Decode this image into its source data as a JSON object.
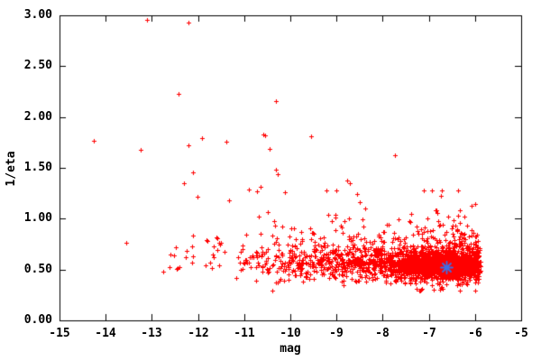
{
  "figure": {
    "background": "#ffffff",
    "frame_color": "#000000",
    "text_color": "#000000"
  },
  "chart_data": {
    "type": "scatter",
    "title": "",
    "xlabel": "mag",
    "ylabel": "1/eta",
    "xlim": [
      -15,
      -5
    ],
    "ylim": [
      0,
      3
    ],
    "grid": false,
    "legend": "none",
    "x_ticks": [
      {
        "value": -15,
        "label": "-15"
      },
      {
        "value": -14,
        "label": "-14"
      },
      {
        "value": -13,
        "label": "-13"
      },
      {
        "value": -12,
        "label": "-12"
      },
      {
        "value": -11,
        "label": "-11"
      },
      {
        "value": -10,
        "label": "-10"
      },
      {
        "value": -9,
        "label": "-9"
      },
      {
        "value": -8,
        "label": "-8"
      },
      {
        "value": -7,
        "label": "-7"
      },
      {
        "value": -6,
        "label": "-6"
      },
      {
        "value": -5,
        "label": "-5"
      }
    ],
    "y_ticks": [
      {
        "value": 0.0,
        "label": "0.00"
      },
      {
        "value": 0.5,
        "label": "0.50"
      },
      {
        "value": 1.0,
        "label": "1.00"
      },
      {
        "value": 1.5,
        "label": "1.50"
      },
      {
        "value": 2.0,
        "label": "2.00"
      },
      {
        "value": 2.5,
        "label": "2.50"
      },
      {
        "value": 3.0,
        "label": "3.00"
      }
    ],
    "series": [
      {
        "name": "data-points",
        "marker": "plus",
        "color": "#ff0000",
        "description": "dense band of ~2600 points from mag -11.2 to -5.9 centered near 1/eta 0.55, thinning and spreading upward toward fainter magnitudes, sparse cluster from -13 to -11.2 near 0.65, isolated outliers up to 2.96",
        "outlier_points": [
          [
            -13.1,
            2.96
          ],
          [
            -12.21,
            2.93
          ],
          [
            -12.42,
            2.23
          ],
          [
            -10.31,
            2.16
          ],
          [
            -14.26,
            1.77
          ],
          [
            -13.24,
            1.68
          ],
          [
            -12.2,
            1.72
          ],
          [
            -11.92,
            1.79
          ],
          [
            -11.39,
            1.76
          ],
          [
            -10.55,
            1.82
          ],
          [
            -10.59,
            1.83
          ],
          [
            -10.44,
            1.69
          ],
          [
            -9.55,
            1.81
          ],
          [
            -12.1,
            1.46
          ],
          [
            -10.32,
            1.48
          ],
          [
            -10.28,
            1.44
          ],
          [
            -12.31,
            1.35
          ],
          [
            -12.02,
            1.22
          ],
          [
            -10.9,
            1.29
          ],
          [
            -10.73,
            1.27
          ],
          [
            -10.65,
            1.31
          ],
          [
            -11.33,
            1.18
          ],
          [
            -10.12,
            1.26
          ],
          [
            -7.73,
            1.62
          ],
          [
            -8.77,
            1.38
          ],
          [
            -8.71,
            1.35
          ],
          [
            -13.55,
            0.76
          ]
        ],
        "cloud": {
          "seed": 1337,
          "groups": [
            {
              "count": 30,
              "x_min": -12.95,
              "x_max": -11.25,
              "x_pow": 0.75,
              "y_center": 0.66,
              "y_sigma": 0.085,
              "tail_frac": 0.18,
              "tail_scale": 0.12,
              "down_frac": 0.0,
              "down_scale": 0.0,
              "y_min": 0.48,
              "y_max": 0.95
            },
            {
              "count": 1250,
              "x_min": -11.25,
              "x_max": -5.92,
              "x_pow": 0.55,
              "y_center": 0.555,
              "y_sigma": 0.075,
              "tail_frac": 0.3,
              "tail_scale": 0.17,
              "down_frac": 0.12,
              "down_scale": 0.05,
              "y_min": 0.29,
              "y_max": 1.28
            },
            {
              "count": 1350,
              "x_gauss": [
                -6.65,
                0.52
              ],
              "x_min": -8.6,
              "x_max": -5.88,
              "y_center": 0.53,
              "y_sigma": 0.065,
              "tail_frac": 0.25,
              "tail_scale": 0.085,
              "down_frac": 0.1,
              "down_scale": 0.045,
              "y_min": 0.3,
              "y_max": 0.97
            }
          ]
        }
      },
      {
        "name": "highlight-point",
        "marker": "star",
        "color": "#3e6fe6",
        "points": [
          [
            -6.63,
            0.52
          ]
        ]
      }
    ]
  }
}
